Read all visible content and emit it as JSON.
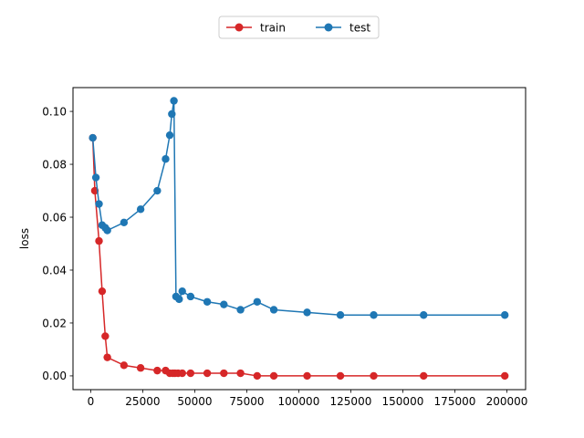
{
  "chart_data": {
    "type": "line",
    "title": "",
    "xlabel": "",
    "ylabel": "loss",
    "xlim": [
      -8500,
      209000
    ],
    "ylim": [
      -0.0052,
      0.109
    ],
    "xticks": [
      {
        "value": 0,
        "label": "0"
      },
      {
        "value": 25000,
        "label": "25000"
      },
      {
        "value": 50000,
        "label": "50000"
      },
      {
        "value": 75000,
        "label": "75000"
      },
      {
        "value": 100000,
        "label": "100000"
      },
      {
        "value": 125000,
        "label": "125000"
      },
      {
        "value": 150000,
        "label": "150000"
      },
      {
        "value": 175000,
        "label": "175000"
      },
      {
        "value": 200000,
        "label": "200000"
      }
    ],
    "yticks": [
      {
        "value": 0.0,
        "label": "0.00"
      },
      {
        "value": 0.02,
        "label": "0.02"
      },
      {
        "value": 0.04,
        "label": "0.04"
      },
      {
        "value": 0.06,
        "label": "0.06"
      },
      {
        "value": 0.08,
        "label": "0.08"
      },
      {
        "value": 0.1,
        "label": "0.10"
      }
    ],
    "grid": false,
    "legend": {
      "placement": "top-center-outside",
      "columns": 2
    },
    "series": [
      {
        "name": "train",
        "color": "#d62728",
        "points": [
          [
            1000,
            0.09
          ],
          [
            2000,
            0.07
          ],
          [
            4000,
            0.051
          ],
          [
            5500,
            0.032
          ],
          [
            7000,
            0.015
          ],
          [
            8000,
            0.007
          ],
          [
            16000,
            0.004
          ],
          [
            24000,
            0.003
          ],
          [
            32000,
            0.002
          ],
          [
            36000,
            0.002
          ],
          [
            38000,
            0.001
          ],
          [
            39500,
            0.001
          ],
          [
            40500,
            0.001
          ],
          [
            42000,
            0.001
          ],
          [
            44000,
            0.001
          ],
          [
            48000,
            0.001
          ],
          [
            56000,
            0.001
          ],
          [
            64000,
            0.001
          ],
          [
            72000,
            0.001
          ],
          [
            80000,
            0.0
          ],
          [
            88000,
            0.0
          ],
          [
            104000,
            0.0
          ],
          [
            120000,
            0.0
          ],
          [
            136000,
            0.0
          ],
          [
            160000,
            0.0
          ],
          [
            199000,
            0.0
          ]
        ]
      },
      {
        "name": "test",
        "color": "#1f77b4",
        "points": [
          [
            1000,
            0.09
          ],
          [
            2500,
            0.075
          ],
          [
            4000,
            0.065
          ],
          [
            5500,
            0.057
          ],
          [
            7000,
            0.056
          ],
          [
            8000,
            0.055
          ],
          [
            16000,
            0.058
          ],
          [
            24000,
            0.063
          ],
          [
            32000,
            0.07
          ],
          [
            36000,
            0.082
          ],
          [
            38000,
            0.091
          ],
          [
            39000,
            0.099
          ],
          [
            40000,
            0.104
          ],
          [
            41000,
            0.03
          ],
          [
            42500,
            0.029
          ],
          [
            44000,
            0.032
          ],
          [
            48000,
            0.03
          ],
          [
            56000,
            0.028
          ],
          [
            64000,
            0.027
          ],
          [
            72000,
            0.025
          ],
          [
            80000,
            0.028
          ],
          [
            88000,
            0.025
          ],
          [
            104000,
            0.024
          ],
          [
            120000,
            0.023
          ],
          [
            136000,
            0.023
          ],
          [
            160000,
            0.023
          ],
          [
            199000,
            0.023
          ]
        ]
      }
    ]
  }
}
